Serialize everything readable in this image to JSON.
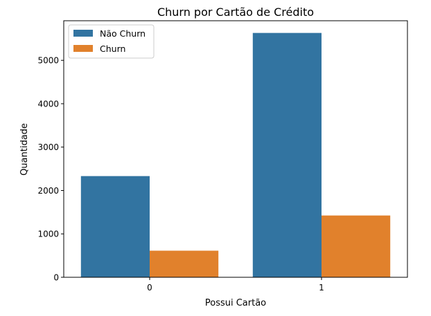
{
  "chart_data": {
    "type": "bar",
    "title": "Churn por Cartão de Crédito",
    "xlabel": "Possui Cartão",
    "ylabel": "Quantidade",
    "categories": [
      "0",
      "1"
    ],
    "series": [
      {
        "name": "Não Churn",
        "values": [
          2332,
          5631
        ],
        "color": "#3274a1"
      },
      {
        "name": "Churn",
        "values": [
          613,
          1424
        ],
        "color": "#e1812c"
      }
    ],
    "ylim": [
      0,
      5912
    ],
    "yticks": [
      0,
      1000,
      2000,
      3000,
      4000,
      5000
    ],
    "grid": false,
    "legend_position": "top-left"
  }
}
